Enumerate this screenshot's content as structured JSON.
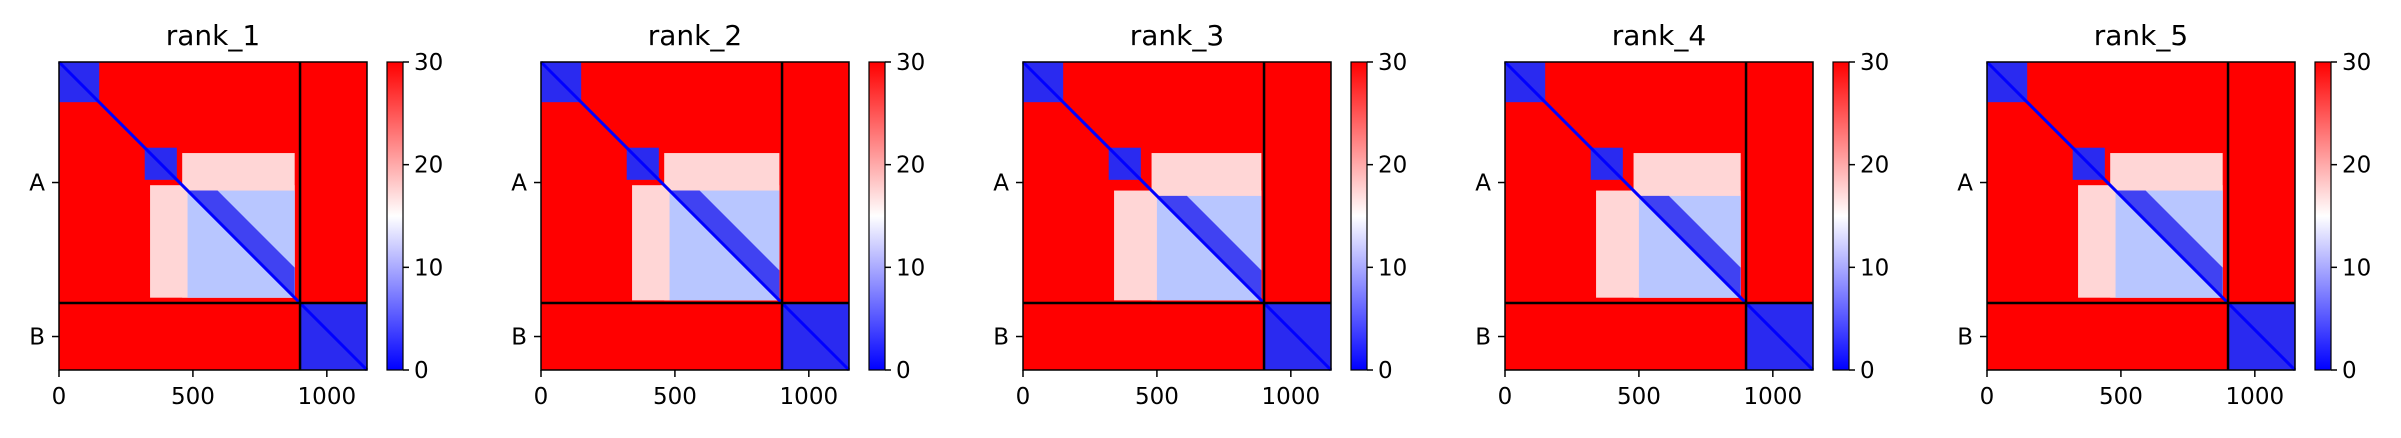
{
  "chart_data": [
    {
      "type": "heatmap",
      "title": "rank_1",
      "x_ticks": [
        0,
        500,
        1000
      ],
      "x_range": [
        0,
        1150
      ],
      "y_ticks": [
        "A",
        "B"
      ],
      "chain_boundary": 900,
      "chain_label_positions": [
        450,
        1025
      ],
      "colorbar": {
        "ticks": [
          0,
          10,
          20,
          30
        ],
        "range": [
          0,
          30
        ],
        "colormap": "bwr"
      },
      "blue_blocks": [
        [
          0,
          150
        ],
        [
          320,
          440
        ],
        [
          480,
          880
        ],
        [
          900,
          1150
        ]
      ]
    },
    {
      "type": "heatmap",
      "title": "rank_2",
      "x_ticks": [
        0,
        500,
        1000
      ],
      "x_range": [
        0,
        1150
      ],
      "y_ticks": [
        "A",
        "B"
      ],
      "chain_boundary": 900,
      "chain_label_positions": [
        450,
        1025
      ],
      "colorbar": {
        "ticks": [
          0,
          10,
          20,
          30
        ],
        "range": [
          0,
          30
        ],
        "colormap": "bwr"
      },
      "blue_blocks": [
        [
          0,
          150
        ],
        [
          320,
          440
        ],
        [
          480,
          890
        ],
        [
          900,
          1150
        ]
      ]
    },
    {
      "type": "heatmap",
      "title": "rank_3",
      "x_ticks": [
        0,
        500,
        1000
      ],
      "x_range": [
        0,
        1150
      ],
      "y_ticks": [
        "A",
        "B"
      ],
      "chain_boundary": 900,
      "chain_label_positions": [
        450,
        1025
      ],
      "colorbar": {
        "ticks": [
          0,
          10,
          20,
          30
        ],
        "range": [
          0,
          30
        ],
        "colormap": "bwr"
      },
      "blue_blocks": [
        [
          0,
          150
        ],
        [
          320,
          440
        ],
        [
          500,
          890
        ],
        [
          900,
          1150
        ]
      ]
    },
    {
      "type": "heatmap",
      "title": "rank_4",
      "x_ticks": [
        0,
        500,
        1000
      ],
      "x_range": [
        0,
        1150
      ],
      "y_ticks": [
        "A",
        "B"
      ],
      "chain_boundary": 900,
      "chain_label_positions": [
        450,
        1025
      ],
      "colorbar": {
        "ticks": [
          0,
          10,
          20,
          30
        ],
        "range": [
          0,
          30
        ],
        "colormap": "bwr"
      },
      "blue_blocks": [
        [
          0,
          150
        ],
        [
          320,
          440
        ],
        [
          500,
          880
        ],
        [
          900,
          1150
        ]
      ]
    },
    {
      "type": "heatmap",
      "title": "rank_5",
      "x_ticks": [
        0,
        500,
        1000
      ],
      "x_range": [
        0,
        1150
      ],
      "y_ticks": [
        "A",
        "B"
      ],
      "chain_boundary": 900,
      "chain_label_positions": [
        450,
        1025
      ],
      "colorbar": {
        "ticks": [
          0,
          10,
          20,
          30
        ],
        "range": [
          0,
          30
        ],
        "colormap": "bwr"
      },
      "blue_blocks": [
        [
          0,
          150
        ],
        [
          320,
          440
        ],
        [
          480,
          880
        ],
        [
          900,
          1150
        ]
      ]
    }
  ]
}
